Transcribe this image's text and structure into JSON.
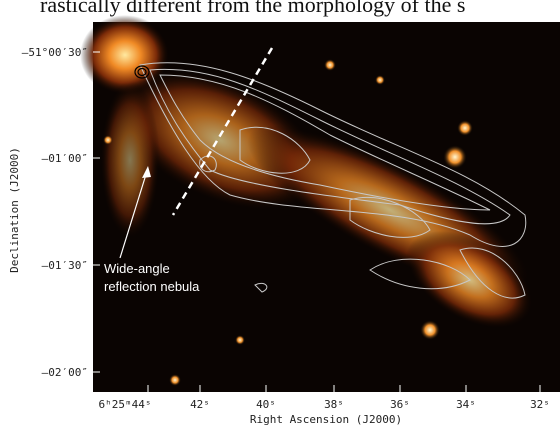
{
  "header_text": "rastically different from the morphology of the s",
  "figure": {
    "y_axis_title": "Declination (J2000)",
    "x_axis_title": "Right Ascension (J2000)",
    "y_tick_labels": [
      "–51°00′30″",
      "–01′00″",
      "–01′30″",
      "–02′00″"
    ],
    "x_tick_labels": [
      "6ʰ25ᵐ44ˢ",
      "42ˢ",
      "40ˢ",
      "38ˢ",
      "36ˢ",
      "34ˢ",
      "32ˢ"
    ],
    "annotation": [
      "Wide-angle",
      "reflection nebula"
    ]
  }
}
